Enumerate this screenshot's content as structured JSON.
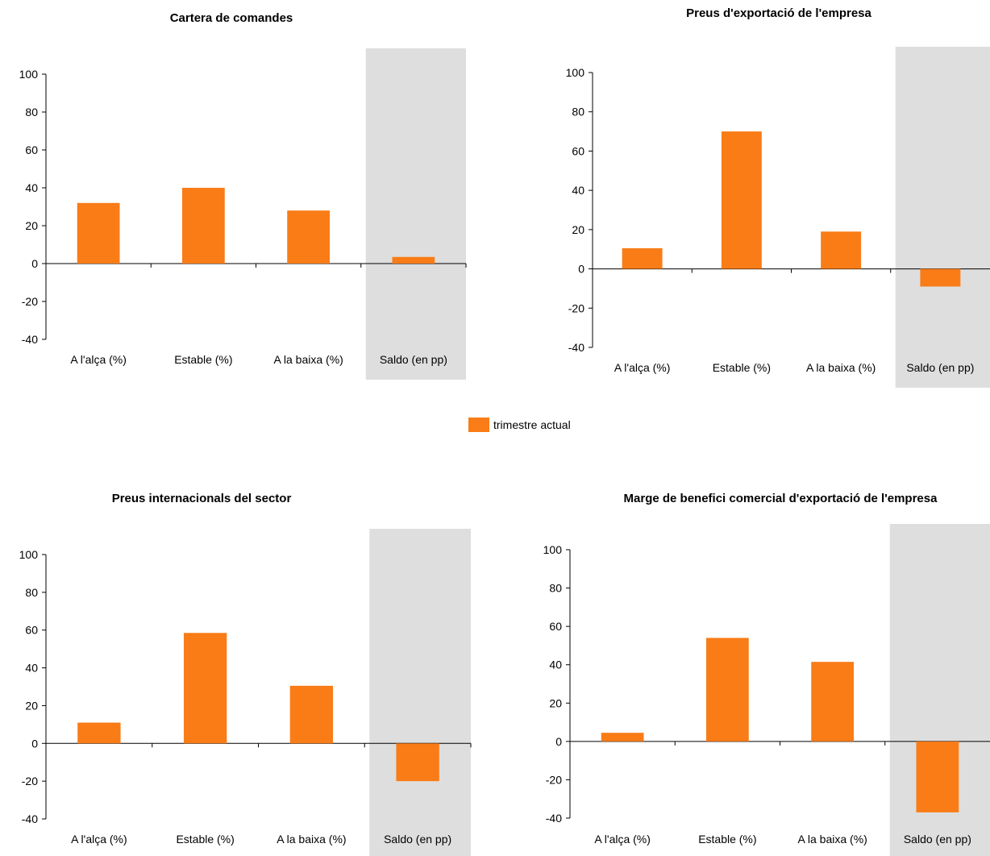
{
  "legend": {
    "label": "trimestre actual",
    "color": "#F97C17"
  },
  "colors": {
    "bar": "#F97C17",
    "highlight_bg": "#DEDEDE",
    "axis": "#000000"
  },
  "chart_data": [
    {
      "type": "bar",
      "title": "Cartera de comandes",
      "categories": [
        "A l'alça (%)",
        "Estable (%)",
        "A la baixa (%)",
        "Saldo (en pp)"
      ],
      "series": [
        {
          "name": "trimestre actual",
          "values": [
            32,
            40,
            28,
            3.5
          ]
        }
      ],
      "ylim": [
        -40,
        100
      ],
      "yticks": [
        -40,
        -20,
        0,
        20,
        40,
        60,
        80,
        100
      ],
      "highlighted_category": "Saldo (en pp)",
      "grid": false
    },
    {
      "type": "bar",
      "title": "Preus d'exportació de l'empresa",
      "categories": [
        "A l'alça (%)",
        "Estable (%)",
        "A la baixa (%)",
        "Saldo (en pp)"
      ],
      "series": [
        {
          "name": "trimestre actual",
          "values": [
            10.5,
            70,
            19,
            -9
          ]
        }
      ],
      "ylim": [
        -40,
        100
      ],
      "yticks": [
        -40,
        -20,
        0,
        20,
        40,
        60,
        80,
        100
      ],
      "highlighted_category": "Saldo (en pp)",
      "grid": false
    },
    {
      "type": "bar",
      "title": "Preus internacionals del sector",
      "categories": [
        "A l'alça (%)",
        "Estable (%)",
        "A la baixa (%)",
        "Saldo (en pp)"
      ],
      "series": [
        {
          "name": "trimestre actual",
          "values": [
            11,
            58.5,
            30.5,
            -20
          ]
        }
      ],
      "ylim": [
        -40,
        100
      ],
      "yticks": [
        -40,
        -20,
        0,
        20,
        40,
        60,
        80,
        100
      ],
      "highlighted_category": "Saldo (en pp)",
      "grid": false
    },
    {
      "type": "bar",
      "title": "Marge de benefici comercial d'exportació de l'empresa",
      "categories": [
        "A l'alça (%)",
        "Estable (%)",
        "A la baixa (%)",
        "Saldo (en pp)"
      ],
      "series": [
        {
          "name": "trimestre actual",
          "values": [
            4.5,
            54,
            41.5,
            -37
          ]
        }
      ],
      "ylim": [
        -40,
        100
      ],
      "yticks": [
        -40,
        -20,
        0,
        20,
        40,
        60,
        80,
        100
      ],
      "highlighted_category": "Saldo (en pp)",
      "grid": false
    }
  ]
}
